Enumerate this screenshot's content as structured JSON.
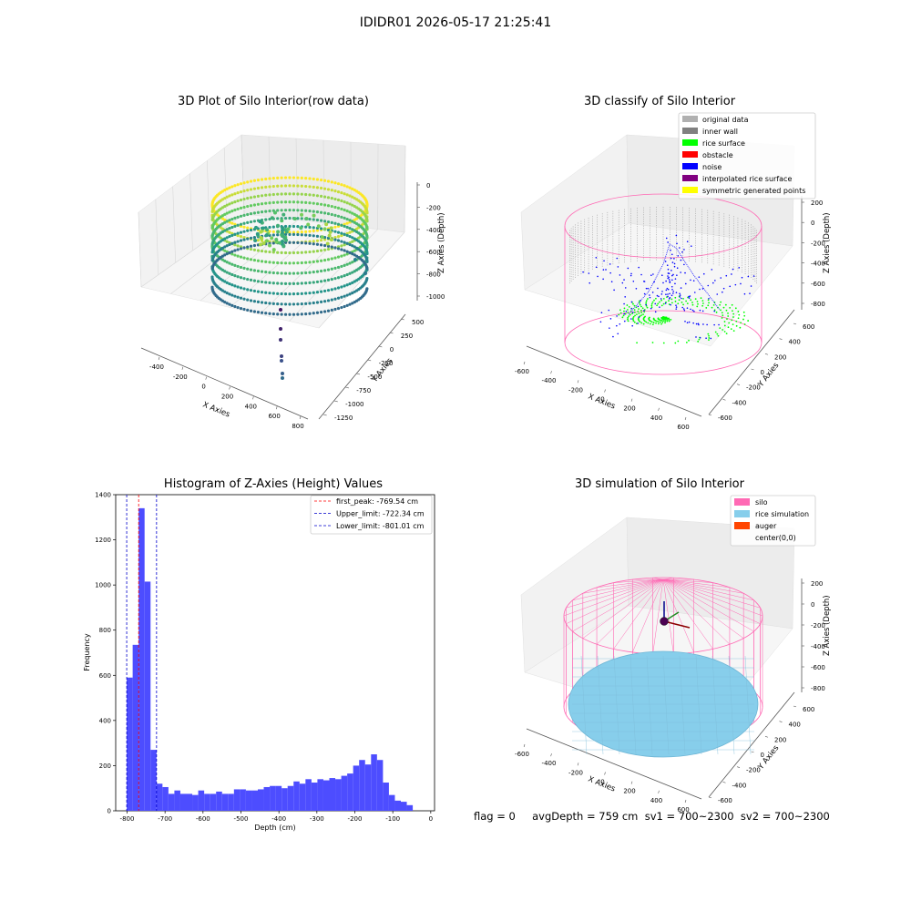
{
  "figure": {
    "title": "IDIDR01 2026-05-17 21:25:41",
    "footer": "flag = 0     avgDepth = 759 cm  sv1 = 700~2300  sv2 = 700~2300"
  },
  "colors": {
    "blue_hist": "#4d4dff",
    "red_line": "#ff0000",
    "blue_line": "#0000cc",
    "silo_pink": "#ff69b4",
    "rice_blue": "#87ceeb",
    "auger_orange": "#ff4500",
    "inner_wall": "#808080",
    "rice_surface": "#00ff00",
    "noise": "#0000ff"
  },
  "chart_data": [
    {
      "type": "scatter",
      "projection": "3d",
      "title": "3D Plot of Silo Interior(row data)",
      "xlabel": "X Axies",
      "ylabel": "Y Axies",
      "zlabel": "Z Axies (Depth)",
      "x_ticks": [
        "-400",
        "-200",
        "0",
        "200",
        "400",
        "600",
        "800"
      ],
      "y_ticks": [
        "500",
        "250",
        "0",
        "-250",
        "-500",
        "-750",
        "-1000",
        "-1250"
      ],
      "z_ticks": [
        "0",
        "-200",
        "-400",
        "-600",
        "-800",
        "-1000"
      ],
      "colormap": "viridis",
      "description_points": "cylindrical shell of points from depth 0 to about -800, rice pile near center"
    },
    {
      "type": "scatter",
      "projection": "3d",
      "title": "3D classify of Silo Interior",
      "xlabel": "X Axies",
      "ylabel": "Y Axies",
      "zlabel": "Z Axies (Depth)",
      "x_ticks": [
        "-600",
        "-400",
        "-200",
        "0",
        "200",
        "400",
        "600"
      ],
      "y_ticks": [
        "600",
        "400",
        "200",
        "0",
        "-200",
        "-400",
        "-600"
      ],
      "z_ticks": [
        "200",
        "0",
        "-200",
        "-400",
        "-600",
        "-800"
      ],
      "legend_position": "top-right",
      "legend": [
        {
          "label": "original data",
          "color": "#b0b0b0"
        },
        {
          "label": "inner wall",
          "color": "#808080"
        },
        {
          "label": "rice surface",
          "color": "#00ff00"
        },
        {
          "label": "obstacle",
          "color": "#ff0000"
        },
        {
          "label": "noise",
          "color": "#0000ff"
        },
        {
          "label": "interpolated rice surface",
          "color": "#800080"
        },
        {
          "label": "symmetric generated points",
          "color": "#ffff00"
        }
      ]
    },
    {
      "type": "bar",
      "title": "Histogram of Z-Axies (Height) Values",
      "xlabel": "Depth (cm)",
      "ylabel": "Frequency",
      "xlim": [
        -830,
        10
      ],
      "ylim": [
        0,
        1400
      ],
      "x_ticks": [
        -800,
        -700,
        -600,
        -500,
        -400,
        -300,
        -200,
        -100,
        0
      ],
      "y_ticks": [
        0,
        200,
        400,
        600,
        800,
        1000,
        1200,
        1400
      ],
      "bin_start": -801,
      "bin_width": 15.7,
      "values": [
        590,
        735,
        1340,
        1015,
        270,
        120,
        105,
        75,
        90,
        75,
        75,
        70,
        90,
        75,
        75,
        85,
        75,
        75,
        95,
        95,
        90,
        90,
        95,
        105,
        110,
        110,
        100,
        110,
        130,
        120,
        140,
        125,
        140,
        135,
        145,
        140,
        155,
        165,
        200,
        225,
        205,
        250,
        225,
        125,
        70,
        45,
        40,
        25
      ],
      "vlines": [
        {
          "label": "first_peak: -769.54 cm",
          "x": -769.54,
          "color": "#ff0000"
        },
        {
          "label": "Upper_limit: -722.34 cm",
          "x": -722.34,
          "color": "#0000cc"
        },
        {
          "label": "Lower_limit: -801.01 cm",
          "x": -801.01,
          "color": "#0000cc"
        }
      ],
      "legend_position": "top-right"
    },
    {
      "type": "surface",
      "projection": "3d",
      "title": "3D simulation of Silo Interior",
      "xlabel": "X Axies",
      "ylabel": "Y Axies",
      "zlabel": "Z Axies (Depth)",
      "x_ticks": [
        "-600",
        "-400",
        "-200",
        "0",
        "200",
        "400",
        "600"
      ],
      "y_ticks": [
        "600",
        "400",
        "200",
        "0",
        "-200",
        "-400",
        "-600"
      ],
      "z_ticks": [
        "200",
        "0",
        "-200",
        "-400",
        "-600",
        "-800"
      ],
      "legend_position": "top-right",
      "legend": [
        {
          "label": "silo",
          "color": "#ff69b4"
        },
        {
          "label": "rice simulation",
          "color": "#87ceeb"
        },
        {
          "label": "auger",
          "color": "#ff4500"
        },
        {
          "label": "center(0,0)",
          "color": ""
        }
      ]
    }
  ]
}
